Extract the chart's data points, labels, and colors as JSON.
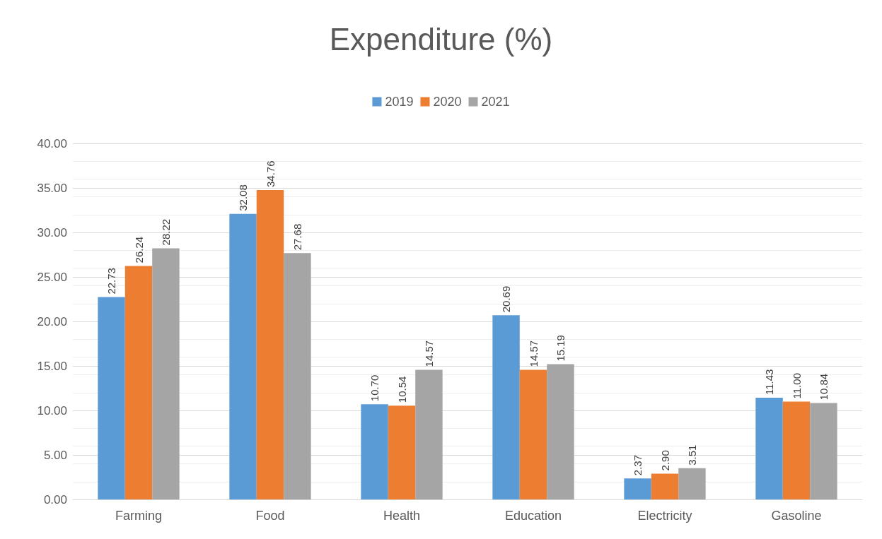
{
  "chart_data": {
    "type": "bar",
    "title": "Expenditure (%)",
    "categories": [
      "Farming",
      "Food",
      "Health",
      "Education",
      "Electricity",
      "Gasoline"
    ],
    "series": [
      {
        "name": "2019",
        "color": "#5b9bd5",
        "values": [
          22.73,
          32.08,
          10.7,
          20.69,
          2.37,
          11.43
        ],
        "value_labels": [
          "22.73",
          "32.08",
          "10.70",
          "20.69",
          "2.37",
          "11.43"
        ]
      },
      {
        "name": "2020",
        "color": "#ed7d31",
        "values": [
          26.24,
          34.76,
          10.54,
          14.57,
          2.9,
          11.0
        ],
        "value_labels": [
          "26.24",
          "34.76",
          "10.54",
          "14.57",
          "2.90",
          "11.00"
        ]
      },
      {
        "name": "2021",
        "color": "#a5a5a5",
        "values": [
          28.22,
          27.68,
          14.57,
          15.19,
          3.51,
          10.84
        ],
        "value_labels": [
          "28.22",
          "27.68",
          "14.57",
          "15.19",
          "3.51",
          "10.84"
        ]
      }
    ],
    "ylim": [
      0,
      40
    ],
    "yticks": [
      "0.00",
      "5.00",
      "10.00",
      "15.00",
      "20.00",
      "25.00",
      "30.00",
      "35.00",
      "40.00"
    ],
    "grid": true,
    "legend": "top"
  }
}
